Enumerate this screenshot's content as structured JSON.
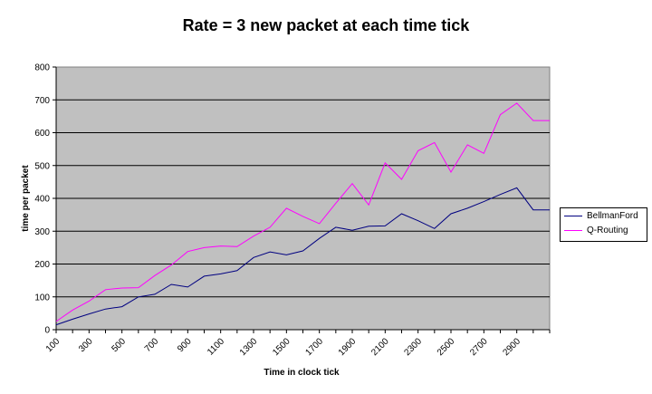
{
  "chart_data": {
    "type": "line",
    "title": "Rate = 3 new packet at each time tick",
    "xlabel": "Time in clock tick",
    "ylabel": "time per packet",
    "x": [
      100,
      200,
      300,
      400,
      500,
      600,
      700,
      800,
      900,
      1000,
      1100,
      1200,
      1300,
      1400,
      1500,
      1600,
      1700,
      1800,
      1900,
      2000,
      2100,
      2200,
      2300,
      2400,
      2500,
      2600,
      2700,
      2800,
      2900,
      3000,
      3100
    ],
    "x_tick_labels": [
      "100",
      "300",
      "500",
      "700",
      "900",
      "1100",
      "1300",
      "1500",
      "1700",
      "1900",
      "2100",
      "2300",
      "2500",
      "2700",
      "2900"
    ],
    "ylim": [
      0,
      800
    ],
    "yticks": [
      0,
      100,
      200,
      300,
      400,
      500,
      600,
      700,
      800
    ],
    "grid": "horizontal",
    "legend_position": "right",
    "series": [
      {
        "name": "BellmanFord",
        "color": "#000080",
        "values": [
          15,
          32,
          48,
          63,
          70,
          100,
          108,
          138,
          130,
          163,
          170,
          180,
          220,
          237,
          228,
          240,
          278,
          312,
          303,
          315,
          316,
          353,
          332,
          308,
          353,
          370,
          390,
          412,
          432,
          365,
          365
        ]
      },
      {
        "name": "Q-Routing",
        "color": "#ff00ff",
        "values": [
          25,
          60,
          87,
          122,
          127,
          128,
          165,
          197,
          238,
          250,
          255,
          253,
          285,
          312,
          370,
          345,
          323,
          385,
          445,
          380,
          508,
          458,
          545,
          570,
          480,
          563,
          537,
          655,
          690,
          637,
          637
        ]
      }
    ]
  }
}
